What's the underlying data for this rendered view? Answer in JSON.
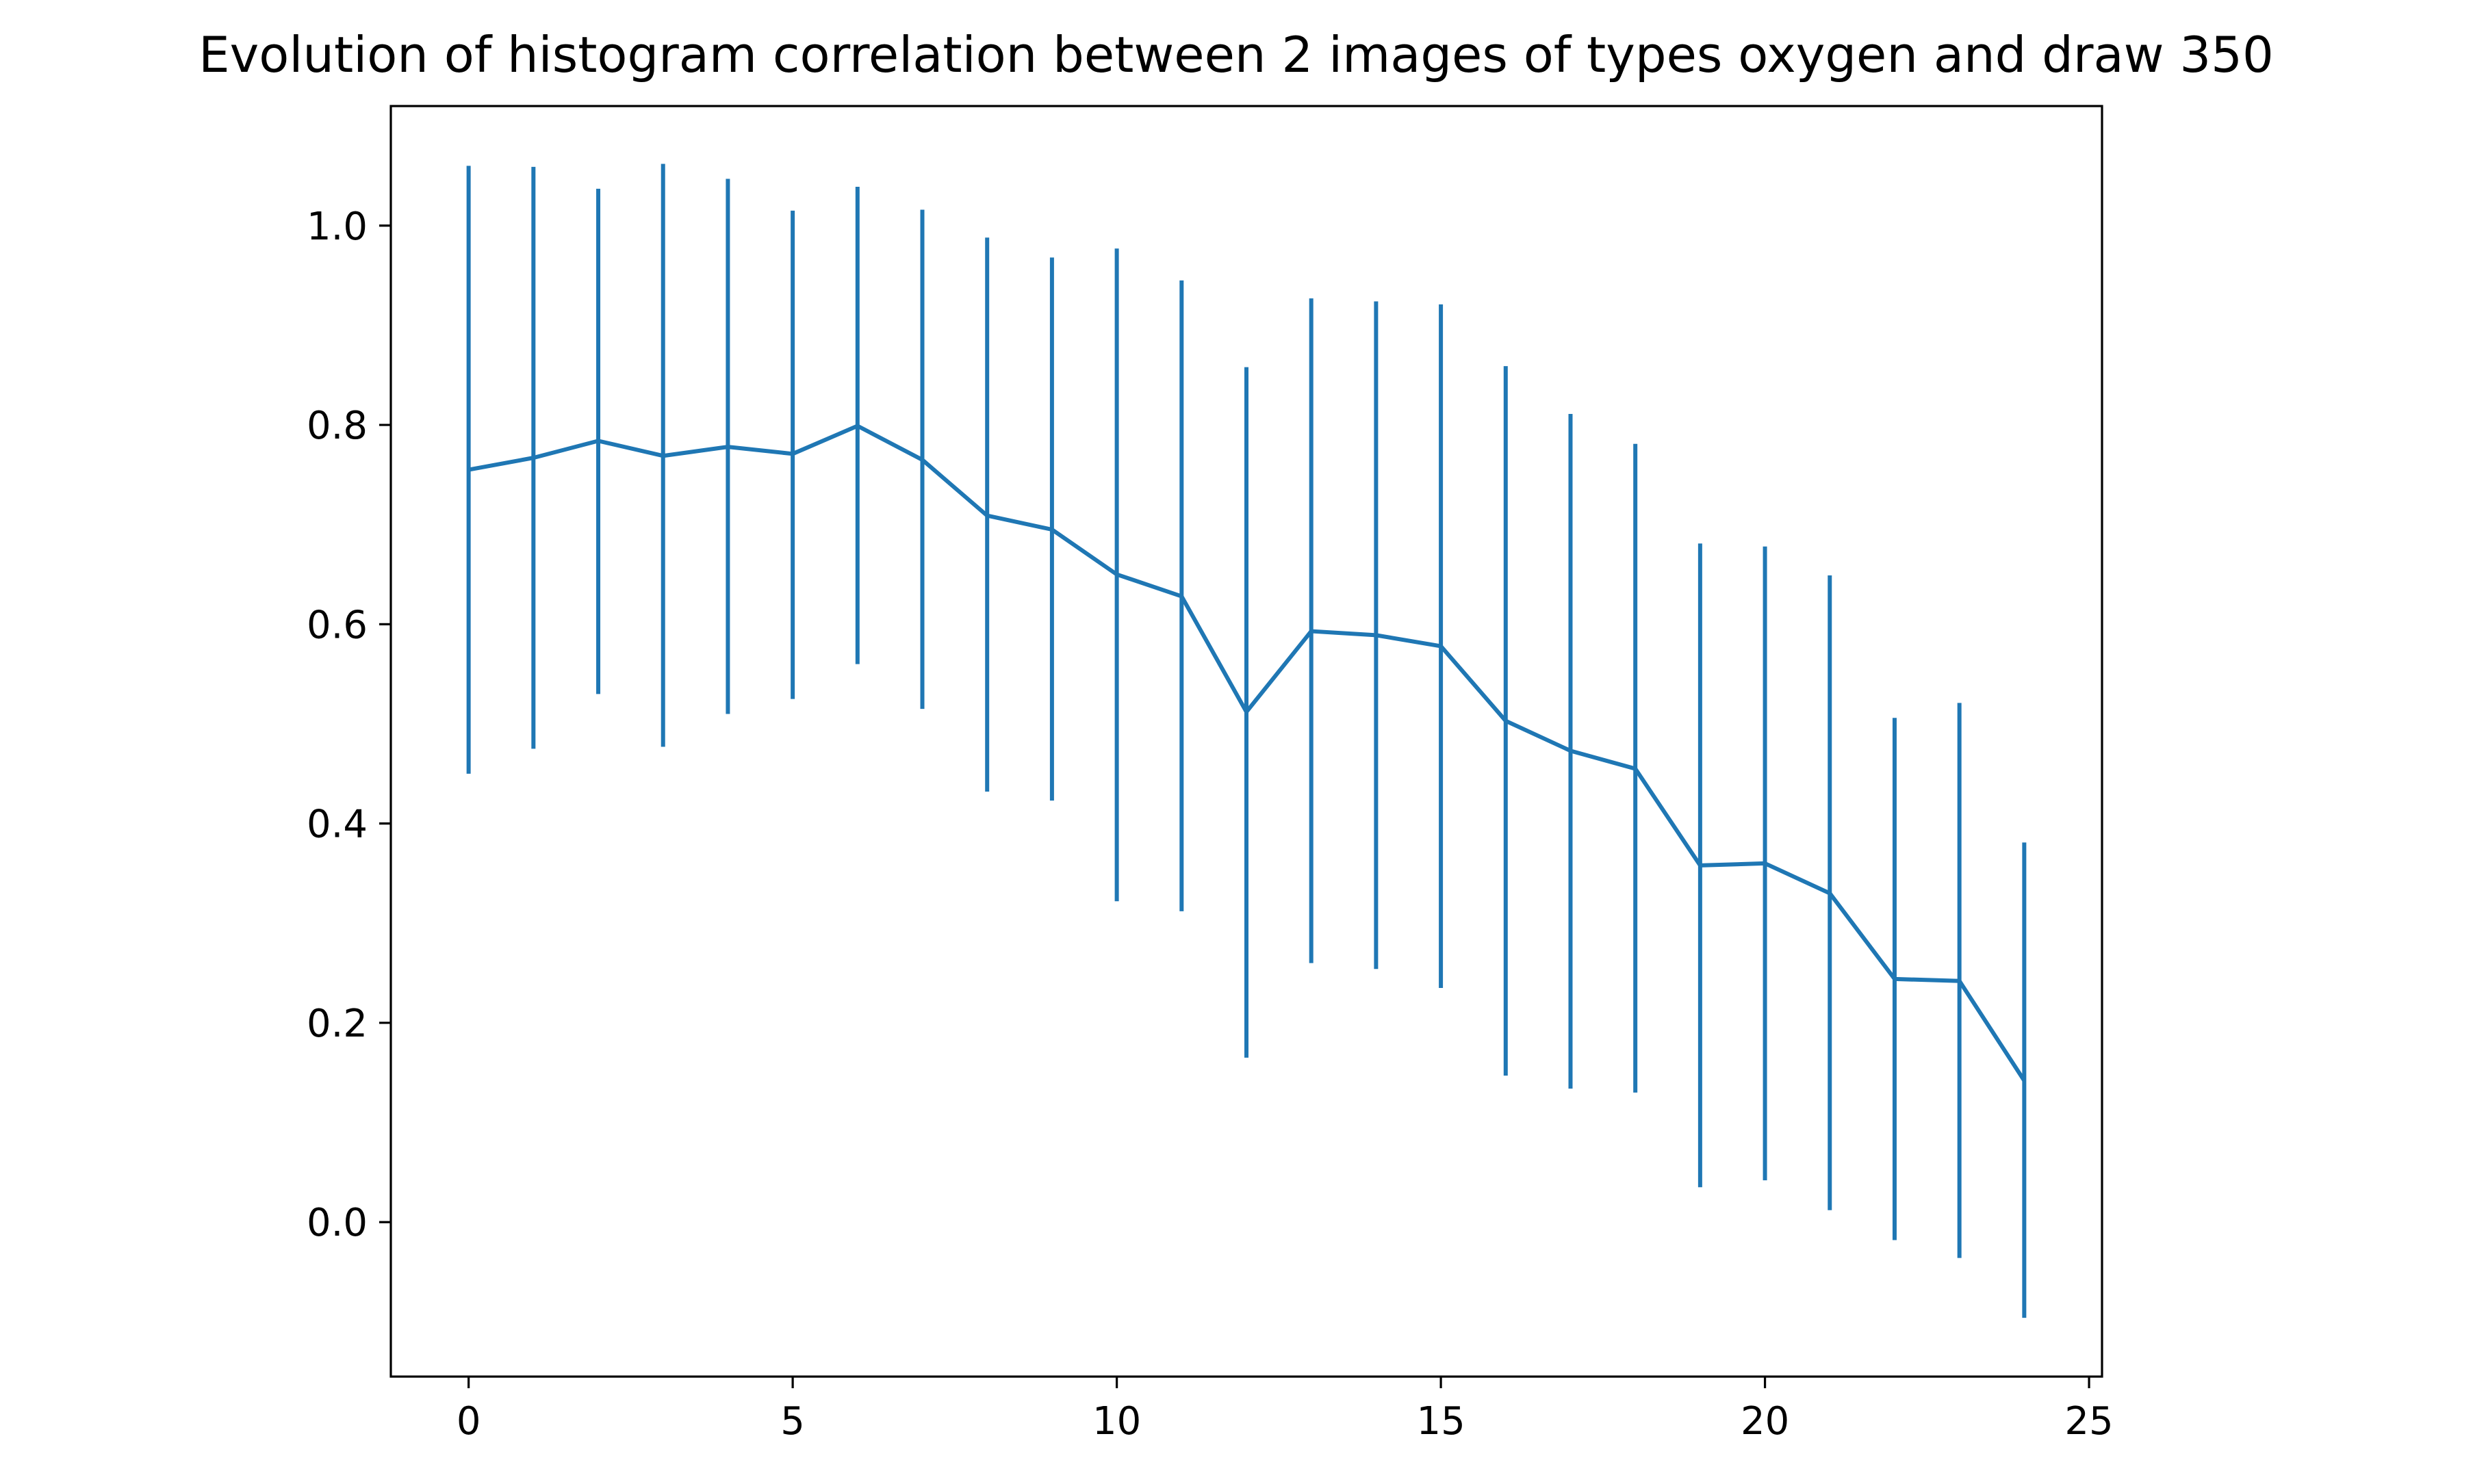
{
  "chart_data": {
    "type": "line",
    "title": "Evolution of histogram correlation between 2 images of types oxygen and draw 350",
    "xlabel": "",
    "ylabel": "",
    "xlim": [
      -1.2,
      25.2
    ],
    "ylim": [
      -0.155,
      1.12
    ],
    "xticks": [
      0,
      5,
      10,
      15,
      20,
      25
    ],
    "xtick_labels": [
      "0",
      "5",
      "10",
      "15",
      "20",
      "25"
    ],
    "yticks": [
      0.0,
      0.2,
      0.4,
      0.6,
      0.8,
      1.0
    ],
    "ytick_labels": [
      "0.0",
      "0.2",
      "0.4",
      "0.6",
      "0.8",
      "1.0"
    ],
    "grid": false,
    "legend": "none",
    "series": [
      {
        "color": "#1f77b4",
        "x": [
          0,
          1,
          2,
          3,
          4,
          5,
          6,
          7,
          8,
          9,
          10,
          11,
          12,
          13,
          14,
          15,
          16,
          17,
          18,
          19,
          20,
          21,
          22,
          23,
          24
        ],
        "y": [
          0.755,
          0.767,
          0.784,
          0.769,
          0.778,
          0.771,
          0.799,
          0.765,
          0.709,
          0.695,
          0.65,
          0.628,
          0.512,
          0.593,
          0.589,
          0.578,
          0.503,
          0.473,
          0.455,
          0.358,
          0.36,
          0.33,
          0.244,
          0.242,
          0.142
        ],
        "err_low": [
          0.45,
          0.475,
          0.53,
          0.477,
          0.51,
          0.525,
          0.56,
          0.515,
          0.432,
          0.423,
          0.322,
          0.312,
          0.165,
          0.26,
          0.254,
          0.235,
          0.147,
          0.134,
          0.13,
          0.035,
          0.042,
          0.012,
          -0.018,
          -0.036,
          -0.096
        ],
        "err_high": [
          1.06,
          1.059,
          1.037,
          1.062,
          1.047,
          1.015,
          1.039,
          1.016,
          0.988,
          0.968,
          0.977,
          0.945,
          0.858,
          0.927,
          0.924,
          0.921,
          0.859,
          0.811,
          0.781,
          0.681,
          0.678,
          0.649,
          0.506,
          0.521,
          0.381
        ]
      }
    ]
  }
}
